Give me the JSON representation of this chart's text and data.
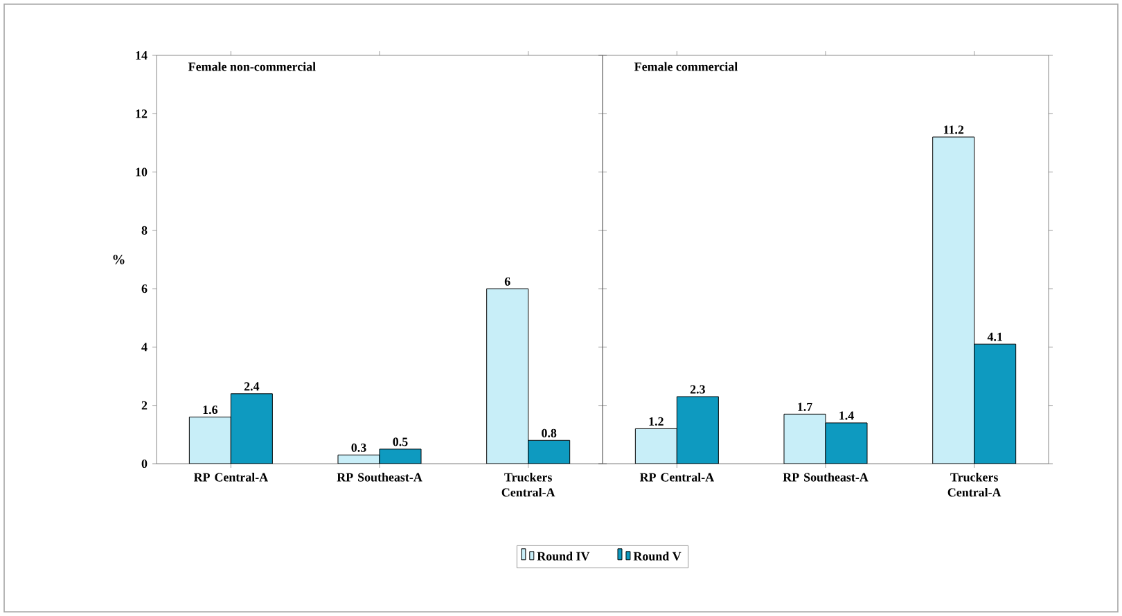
{
  "chart_data": [
    {
      "type": "bar",
      "title": "Female non-commercial",
      "ylabel": "%",
      "categories": [
        "RP Central-A",
        "RP Southeast-A",
        "Truckers Central-A"
      ],
      "series": [
        {
          "name": "Round IV",
          "color": "#c8eef8",
          "values": [
            1.6,
            0.3,
            6
          ]
        },
        {
          "name": "Round V",
          "color": "#0e9ac0",
          "values": [
            2.4,
            0.5,
            0.8
          ]
        }
      ],
      "ylim": [
        0,
        14
      ],
      "yticks": [
        0,
        2,
        4,
        6,
        8,
        10,
        12,
        14
      ],
      "data_labels": true,
      "legend": "bottom"
    },
    {
      "type": "bar",
      "title": "Female commercial",
      "categories": [
        "RP Central-A",
        "RP Southeast-A",
        "Truckers Central-A"
      ],
      "series": [
        {
          "color": "#c8eef8",
          "values": [
            1.2,
            1.7,
            11.2
          ]
        },
        {
          "color": "#0e9ac0",
          "values": [
            2.3,
            1.4,
            4.1
          ]
        }
      ],
      "ylim": [
        0,
        14
      ],
      "yticks": [
        0,
        2,
        4,
        6,
        8,
        10,
        12,
        14
      ],
      "data_labels": true,
      "tick_labels": "x"
    }
  ]
}
